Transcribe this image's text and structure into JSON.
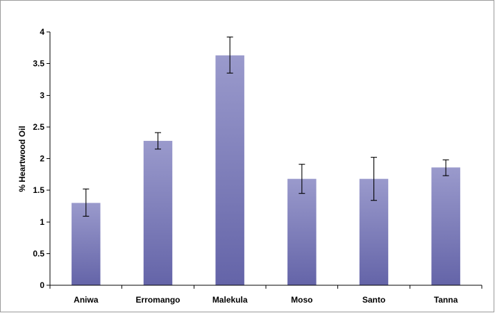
{
  "chart_data": {
    "type": "bar",
    "title": "",
    "xlabel": "",
    "ylabel": "% Heartwood Oil",
    "categories": [
      "Aniwa",
      "Erromango",
      "Malekula",
      "Moso",
      "Santo",
      "Tanna"
    ],
    "values": [
      1.3,
      2.28,
      3.63,
      1.68,
      1.68,
      1.86
    ],
    "error_low": [
      1.09,
      2.15,
      3.35,
      1.45,
      1.34,
      1.73
    ],
    "error_high": [
      1.52,
      2.41,
      3.92,
      1.91,
      2.02,
      1.98
    ],
    "ylim": [
      0,
      4
    ],
    "yticks": [
      0,
      0.5,
      1,
      1.5,
      2,
      2.5,
      3,
      3.5,
      4
    ],
    "ytick_labels": [
      "0",
      "0.5",
      "1",
      "1.5",
      "2",
      "2.5",
      "3",
      "3.5",
      "4"
    ],
    "grid": false,
    "legend": "none",
    "colors": {
      "bar_top": "#9a9acc",
      "bar_bottom": "#6464a8",
      "axis": "#000000",
      "frame": "#9a9a9a"
    }
  }
}
